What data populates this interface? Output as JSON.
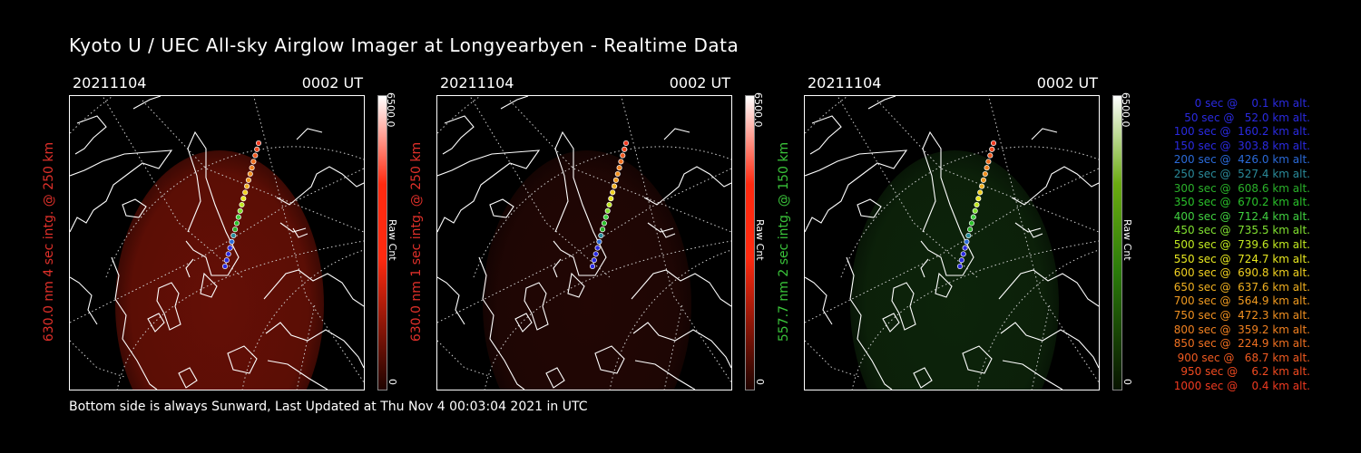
{
  "title": "Kyoto U / UEC All-sky Airglow Imager at Longyearbyen - Realtime Data",
  "footer": "Bottom side is always Sunward, Last Updated at Thu Nov  4 00:03:04 2021 in UTC",
  "chart_data": [
    {
      "type": "heatmap",
      "date": "20211104",
      "time": "0002 UT",
      "ylabel": "630.0 nm 4 sec intg. @ 250 km",
      "label_color": "#e0302a",
      "colorbar": {
        "max": "6500.0",
        "min": "0",
        "label": "Raw Cnt",
        "color": "#ff2a10"
      },
      "glow": {
        "color": "#6a1006",
        "opacity": 0.95
      }
    },
    {
      "type": "heatmap",
      "date": "20211104",
      "time": "0002 UT",
      "ylabel": "630.0 nm 1 sec intg. @ 250 km",
      "label_color": "#e0302a",
      "colorbar": {
        "max": "6500.0",
        "min": "0",
        "label": "Raw Cnt",
        "color": "#ff2a10"
      },
      "glow": {
        "color": "#2a0805",
        "opacity": 0.8
      }
    },
    {
      "type": "heatmap",
      "date": "20211104",
      "time": "0002 UT",
      "ylabel": "557.7 nm 2 sec intg. @ 150 km",
      "label_color": "#3ac43a",
      "colorbar": {
        "max": "6500.0",
        "min": "0",
        "label": "Raw Cnt",
        "color": "#3aa010"
      },
      "glow": {
        "color": "#0f2a0c",
        "opacity": 0.85
      }
    }
  ],
  "trajectory": [
    {
      "label": "   0 sec @    0.1 km alt.",
      "color": "#2a2ae0"
    },
    {
      "label": "  50 sec @   52.0 km alt.",
      "color": "#2a2ae0"
    },
    {
      "label": " 100 sec @  160.2 km alt.",
      "color": "#2a2ae0"
    },
    {
      "label": " 150 sec @  303.8 km alt.",
      "color": "#2a2ae0"
    },
    {
      "label": " 200 sec @  426.0 km alt.",
      "color": "#2a6ad8"
    },
    {
      "label": " 250 sec @  527.4 km alt.",
      "color": "#2a8a9a"
    },
    {
      "label": " 300 sec @  608.6 km alt.",
      "color": "#2ab02a"
    },
    {
      "label": " 350 sec @  670.2 km alt.",
      "color": "#2ac02a"
    },
    {
      "label": " 400 sec @  712.4 km alt.",
      "color": "#40d040"
    },
    {
      "label": " 450 sec @  735.5 km alt.",
      "color": "#80e030"
    },
    {
      "label": " 500 sec @  739.6 km alt.",
      "color": "#c0e820"
    },
    {
      "label": " 550 sec @  724.7 km alt.",
      "color": "#e8e820"
    },
    {
      "label": " 600 sec @  690.8 km alt.",
      "color": "#f0d020"
    },
    {
      "label": " 650 sec @  637.6 km alt.",
      "color": "#f0b020"
    },
    {
      "label": " 700 sec @  564.9 km alt.",
      "color": "#f09a20"
    },
    {
      "label": " 750 sec @  472.3 km alt.",
      "color": "#f09020"
    },
    {
      "label": " 800 sec @  359.2 km alt.",
      "color": "#f08020"
    },
    {
      "label": " 850 sec @  224.9 km alt.",
      "color": "#f07020"
    },
    {
      "label": " 900 sec @   68.7 km alt.",
      "color": "#f05a20"
    },
    {
      "label": " 950 sec @    6.2 km alt.",
      "color": "#f04a20"
    },
    {
      "label": "1000 sec @    0.4 km alt.",
      "color": "#f03a20"
    }
  ]
}
